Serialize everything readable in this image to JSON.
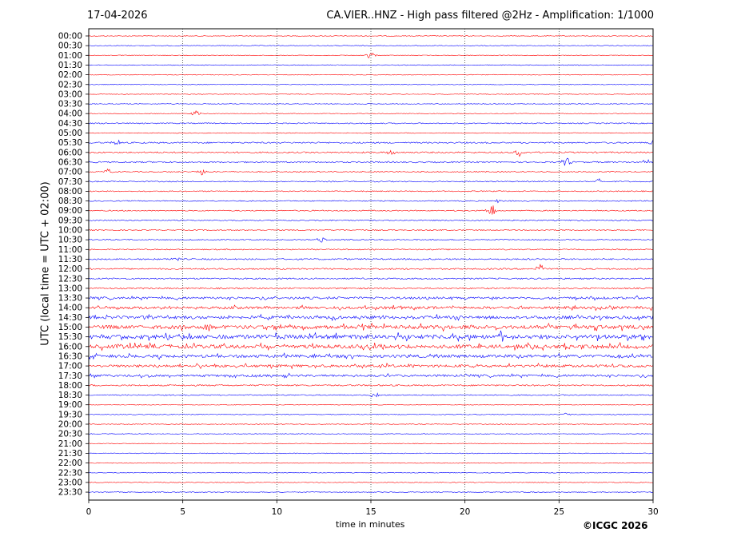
{
  "header": {
    "date": "17-04-2026",
    "title": "CA.VIER..HNZ - High pass filtered @2Hz - Amplification: 1/1000"
  },
  "footer": {
    "copyright": "©ICGC 2026"
  },
  "chart_data": {
    "type": "line",
    "title": "CA.VIER..HNZ - High pass filtered @2Hz - Amplification: 1/1000",
    "xlabel": "time in minutes",
    "ylabel": "UTC (local time = UTC + 02:00)",
    "xlim": [
      0,
      30
    ],
    "xticks": [
      0,
      5,
      10,
      15,
      20,
      25,
      30
    ],
    "x_gridlines": [
      5,
      10,
      15,
      20,
      25
    ],
    "grid": "vertical dotted",
    "colors": {
      "odd_rows": "#ff0000",
      "even_rows": "#0000ff"
    },
    "rows": [
      "00:00",
      "00:30",
      "01:00",
      "01:30",
      "02:00",
      "02:30",
      "03:00",
      "03:30",
      "04:00",
      "04:30",
      "05:00",
      "05:30",
      "06:00",
      "06:30",
      "07:00",
      "07:30",
      "08:00",
      "08:30",
      "09:00",
      "09:30",
      "10:00",
      "10:30",
      "11:00",
      "11:30",
      "12:00",
      "12:30",
      "13:00",
      "13:30",
      "14:00",
      "14:30",
      "15:00",
      "15:30",
      "16:00",
      "16:30",
      "17:00",
      "17:30",
      "18:00",
      "18:30",
      "19:00",
      "19:30",
      "20:00",
      "20:30",
      "21:00",
      "21:30",
      "22:00",
      "22:30",
      "23:00",
      "23:30"
    ],
    "noise_level": [
      1,
      1,
      1,
      1,
      1,
      1,
      1,
      1,
      1,
      1.5,
      1,
      2,
      2,
      2,
      1.5,
      1.5,
      1.5,
      1.5,
      1.5,
      1.5,
      1.5,
      1.5,
      1.5,
      2,
      2,
      2,
      2,
      3,
      3.5,
      4,
      5,
      5.5,
      5,
      4,
      3.5,
      3,
      2,
      1.5,
      1,
      1,
      1,
      1,
      1,
      1,
      1,
      1,
      1,
      1
    ],
    "events": [
      {
        "row": "01:00",
        "minute": 15.0,
        "amplitude": 5
      },
      {
        "row": "04:00",
        "minute": 5.7,
        "amplitude": 4
      },
      {
        "row": "05:30",
        "minute": 1.5,
        "amplitude": 4
      },
      {
        "row": "05:30",
        "minute": 30.0,
        "amplitude": 4
      },
      {
        "row": "06:00",
        "minute": 16.1,
        "amplitude": 4
      },
      {
        "row": "06:00",
        "minute": 22.9,
        "amplitude": 5
      },
      {
        "row": "06:30",
        "minute": 25.4,
        "amplitude": 6
      },
      {
        "row": "06:30",
        "minute": 29.6,
        "amplitude": 4
      },
      {
        "row": "07:00",
        "minute": 1.0,
        "amplitude": 4
      },
      {
        "row": "07:00",
        "minute": 6.0,
        "amplitude": 5
      },
      {
        "row": "07:30",
        "minute": 27.2,
        "amplitude": 6
      },
      {
        "row": "08:30",
        "minute": 21.8,
        "amplitude": 3
      },
      {
        "row": "09:00",
        "minute": 21.4,
        "amplitude": 9
      },
      {
        "row": "10:30",
        "minute": 12.4,
        "amplitude": 4
      },
      {
        "row": "11:30",
        "minute": 4.6,
        "amplitude": 3
      },
      {
        "row": "12:00",
        "minute": 24.0,
        "amplitude": 6
      },
      {
        "row": "15:00",
        "minute": 6.4,
        "amplitude": 8
      },
      {
        "row": "15:30",
        "minute": 21.9,
        "amplitude": 6
      },
      {
        "row": "15:30",
        "minute": 29.4,
        "amplitude": 7
      },
      {
        "row": "18:30",
        "minute": 15.2,
        "amplitude": 6
      },
      {
        "row": "19:30",
        "minute": 25.5,
        "amplitude": 3
      }
    ]
  }
}
